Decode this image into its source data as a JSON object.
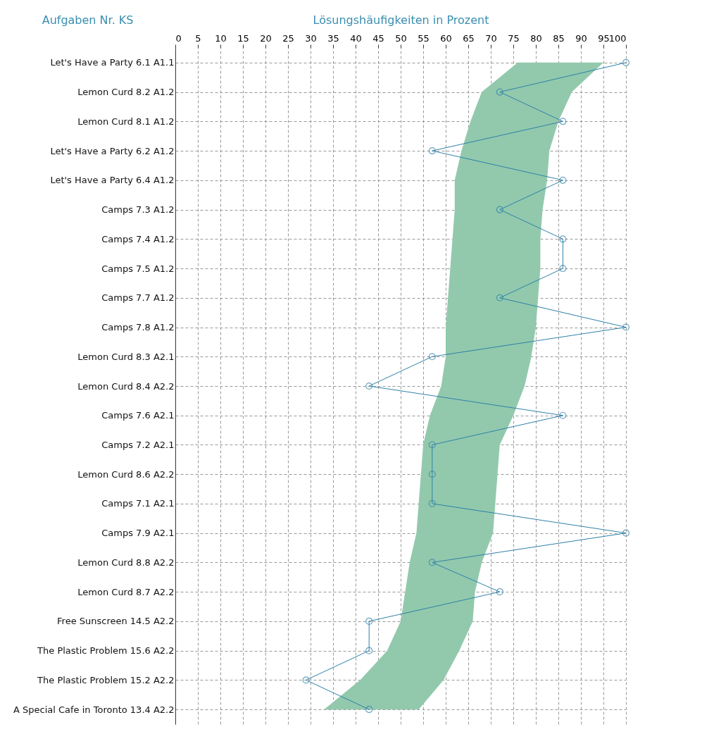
{
  "chart_data": {
    "type": "line",
    "orientation": "horizontal",
    "xlabel": "Lösungshäufigkeiten in Prozent",
    "ylabel": "Aufgaben  Nr.  KS",
    "categories": [
      "Let's Have a Party  6.1  A1.1",
      "Lemon Curd  8.2  A1.2",
      "Lemon Curd  8.1  A1.2",
      "Let's Have a Party  6.2  A1.2",
      "Let's Have a Party  6.4  A1.2",
      "Camps  7.3  A1.2",
      "Camps  7.4  A1.2",
      "Camps  7.5  A1.2",
      "Camps  7.7  A1.2",
      "Camps  7.8  A1.2",
      "Lemon Curd  8.3  A2.1",
      "Lemon Curd  8.4  A2.2",
      "Camps  7.6  A2.1",
      "Camps  7.2  A2.1",
      "Lemon Curd  8.6  A2.2",
      "Camps  7.1  A2.1",
      "Camps  7.9  A2.1",
      "Lemon Curd  8.8  A2.2",
      "Lemon Curd  8.7  A2.2",
      "Free Sunscreen  14.5  A2.2",
      "The Plastic Problem  15.6  A2.2",
      "The Plastic Problem  15.2  A2.2",
      "A Special Cafe in Toronto  13.4  A2.2"
    ],
    "series": [
      {
        "color": "#2f80a8",
        "values": [
          100,
          72,
          86,
          57,
          86,
          72,
          86,
          86,
          72,
          100,
          57,
          43,
          86,
          57,
          57,
          57,
          100,
          57,
          72,
          43,
          43,
          29,
          43
        ],
        "lower": [
          76,
          68,
          65.5,
          63.5,
          62,
          62,
          61.5,
          61,
          60.5,
          60,
          60,
          59,
          56.5,
          55,
          54.5,
          54,
          53.5,
          52,
          51,
          50,
          47,
          41,
          33
        ],
        "upper": [
          95,
          88,
          85,
          83,
          82.5,
          81.5,
          81,
          81,
          80.5,
          80,
          79,
          77.5,
          75,
          72,
          71.5,
          71,
          70.5,
          68,
          66.5,
          66,
          63,
          59.5,
          54
        ]
      }
    ],
    "xlim": [
      0,
      100
    ],
    "xticks": [
      0,
      5,
      10,
      15,
      20,
      25,
      30,
      35,
      40,
      45,
      50,
      55,
      60,
      65,
      70,
      75,
      80,
      85,
      90,
      95,
      100
    ],
    "grid": true,
    "marker": "circle",
    "line_style": "solid"
  }
}
